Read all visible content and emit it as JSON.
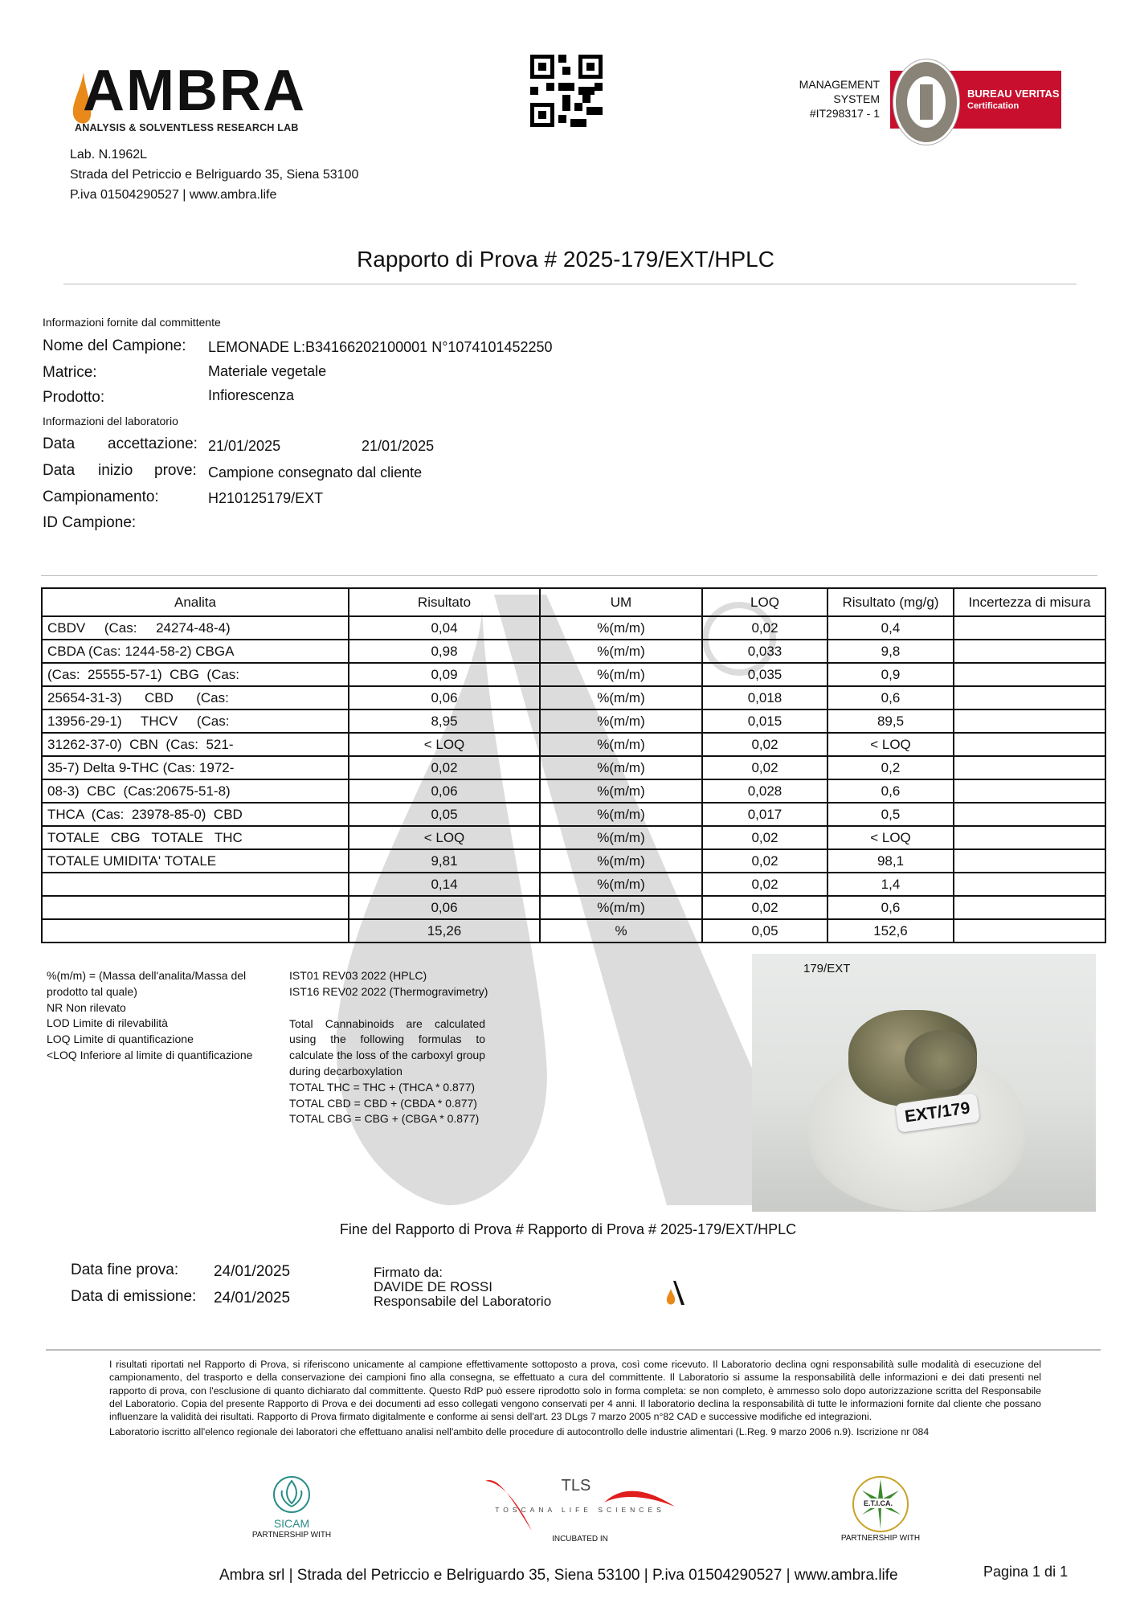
{
  "header": {
    "logo_text": "AMBRA",
    "logo_tagline": "ANALYSIS & SOLVENTLESS RESEARCH LAB",
    "qr_icon": "qr-code",
    "certification": {
      "line1": "MANAGEMENT",
      "line2": "SYSTEM",
      "line3": "#IT298317 - 1",
      "badge_title": "BUREAU VERITAS",
      "badge_subtitle": "Certification",
      "seal_text": "BUREAU VERITAS 1828",
      "badge_color": "#c8102e"
    },
    "address": [
      "Lab. N.1962L",
      "Strada del Petriccio e Belriguardo 35, Siena 53100",
      "P.iva 01504290527 | www.ambra.life"
    ]
  },
  "report": {
    "title": "Rapporto di Prova # 2025-179/EXT/HPLC"
  },
  "info": {
    "client_heading": "Informazioni fornite dal committente",
    "sample_name_label": "Nome del Campione:",
    "sample_name": "LEMONADE L:B34166202100001 N°1074101452250",
    "matrix_label": "Matrice:",
    "matrix": "Materiale vegetale",
    "product_label": "Prodotto:",
    "product": "Infiorescenza",
    "lab_heading": "Informazioni del laboratorio",
    "acceptance_label_1": "Data",
    "acceptance_label_2": "accettazione:",
    "acceptance_date": "21/01/2025",
    "acceptance_date_2": "21/01/2025",
    "start_label_1": "Data",
    "start_label_2": "inizio",
    "start_label_3": "prove:",
    "start_value": "Campione consegnato dal cliente",
    "sampling_label": "Campionamento:",
    "sampling_value": "H210125179/EXT",
    "id_label": "ID Campione:"
  },
  "table": {
    "headers": [
      "Analita",
      "Risultato",
      "UM",
      "LOQ",
      "Risultato (mg/g)",
      "Incertezza di misura"
    ],
    "rows": [
      [
        "CBDV     (Cas:     24274-48-4)",
        "0,04",
        "%(m/m)",
        "0,02",
        "0,4",
        ""
      ],
      [
        "CBDA (Cas: 1244-58-2) CBGA",
        "0,98",
        "%(m/m)",
        "0,033",
        "9,8",
        ""
      ],
      [
        "(Cas:  25555-57-1)  CBG  (Cas:",
        "0,09",
        "%(m/m)",
        "0,035",
        "0,9",
        ""
      ],
      [
        "25654-31-3)      CBD      (Cas:",
        "0,06",
        "%(m/m)",
        "0,018",
        "0,6",
        ""
      ],
      [
        "13956-29-1)     THCV     (Cas:",
        "8,95",
        "%(m/m)",
        "0,015",
        "89,5",
        ""
      ],
      [
        "31262-37-0)  CBN  (Cas:  521-",
        "< LOQ",
        "%(m/m)",
        "0,02",
        "< LOQ",
        ""
      ],
      [
        "35-7) Delta 9-THC (Cas: 1972-",
        "0,02",
        "%(m/m)",
        "0,02",
        "0,2",
        ""
      ],
      [
        "08-3)  CBC  (Cas:20675-51-8)",
        "0,06",
        "%(m/m)",
        "0,028",
        "0,6",
        ""
      ],
      [
        "THCA  (Cas:  23978-85-0)  CBD",
        "0,05",
        "%(m/m)",
        "0,017",
        "0,5",
        ""
      ],
      [
        "TOTALE   CBG   TOTALE   THC",
        "< LOQ",
        "%(m/m)",
        "0,02",
        "< LOQ",
        ""
      ],
      [
        "TOTALE UMIDITA' TOTALE",
        "9,81",
        "%(m/m)",
        "0,02",
        "98,1",
        ""
      ],
      [
        "",
        "0,14",
        "%(m/m)",
        "0,02",
        "1,4",
        ""
      ],
      [
        "",
        "0,06",
        "%(m/m)",
        "0,02",
        "0,6",
        ""
      ],
      [
        "",
        "15,26",
        "%",
        "0,05",
        "152,6",
        ""
      ]
    ]
  },
  "notes": {
    "legend": [
      "%(m/m) = (Massa dell'analita/Massa del",
      "prodotto tal quale)",
      "NR Non rilevato",
      "LOD Limite di rilevabilità",
      "LOQ Limite di quantificazione",
      "<LOQ Inferiore al limite di quantificazione"
    ],
    "methods": [
      "IST01 REV03 2022 (HPLC)",
      "IST16 REV02 2022 (Thermogravimetry)"
    ],
    "formula_text": "Total Cannabinoids are calculated using the following formulas to calculate the loss of the carboxyl group during decarboxylation",
    "formulas": [
      "TOTAL THC = THC + (THCA * 0.877)",
      "TOTAL CBD = CBD + (CBDA * 0.877)",
      "TOTAL CBG = CBG + (CBGA * 0.877)"
    ]
  },
  "photo": {
    "caption": "179/EXT",
    "label": "EXT/179"
  },
  "end": {
    "text": "Fine del Rapporto di Prova # Rapporto di Prova # 2025-179/EXT/HPLC",
    "end_date_label": "Data fine prova:",
    "end_date": "24/01/2025",
    "issue_date_label": "Data di emissione:",
    "issue_date": "24/01/2025",
    "signed_label": "Firmato da:",
    "signer": "DAVIDE DE ROSSI",
    "signer_role": "Responsabile del Laboratorio"
  },
  "disclaimer": {
    "paragraph": "I risultati riportati nel Rapporto di Prova, si riferiscono unicamente al campione effettivamente sottoposto a prova, così come ricevuto. Il Laboratorio declina ogni responsabilità sulle modalità di esecuzione del campionamento, del trasporto e della conservazione dei campioni fino alla consegna, se effettuato a cura del committente. Il Laboratorio si assume la responsabilità delle informazioni e dei dati presenti nel rapporto di prova, con l'esclusione di quanto dichiarato dal committente. Questo RdP può essere riprodotto solo in forma completa: se non completo, è ammesso solo dopo autorizzazione scritta del Responsabile del Laboratorio. Copia del presente Rapporto di Prova e dei documenti ad esso collegati vengono conservati per 4 anni. Il laboratorio declina la responsabilità di tutte le informazioni fornite dal cliente che possano influenzare la validità dei risultati. Rapporto di Prova firmato digitalmente e conforme ai sensi dell'art. 23 DLgs 7 marzo 2005 n°82 CAD e successive modifiche ed integrazioni.",
    "registration": "Laboratorio iscritto all'elenco regionale dei laboratori che effettuano analisi nell'ambito delle procedure di autocontrollo delle industrie alimentari (L.Reg. 9 marzo 2006 n.9). Iscrizione nr 084"
  },
  "partners": [
    {
      "name": "SICAM",
      "caption": "PARTNERSHIP WITH",
      "color": "#2a8c86"
    },
    {
      "name": "TLS",
      "subtitle": "TOSCANA LIFE SCIENCES",
      "caption": "INCUBATED IN",
      "color": "#e01e1e"
    },
    {
      "name": "E.T.I.CA.",
      "caption": "PARTNERSHIP WITH",
      "color": "#3a8a2a"
    }
  ],
  "footer": {
    "text": "Ambra srl | Strada del Petriccio e Belriguardo 35, Siena 53100 | P.iva 01504290527 | www.ambra.life",
    "page": "Pagina 1 di 1"
  },
  "colors": {
    "logo_drop": "#e8891a",
    "watermark": "#dcdcdc"
  }
}
